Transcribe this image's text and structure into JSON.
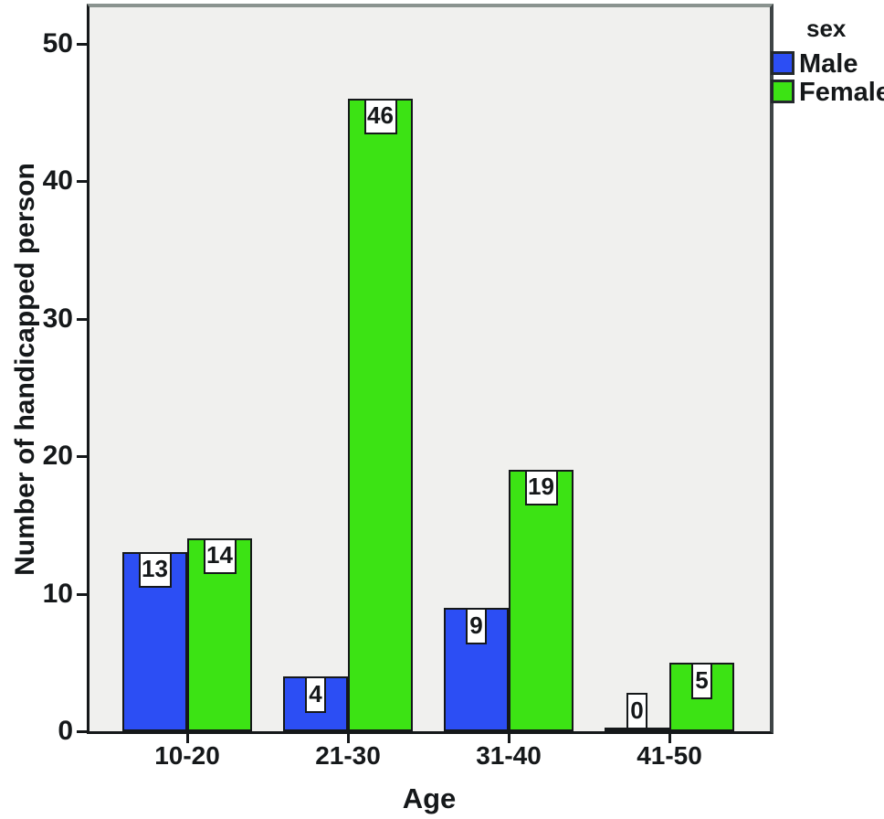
{
  "colors": {
    "male_bar": "#2c4ef4",
    "female_bar": "#3ce314",
    "plot_background": "#f0f0ee",
    "bar_border": "#15181a",
    "value_label_background": "#ffffff",
    "frame_top_gray": "#8a938f",
    "frame_right_gray": "#3f4446",
    "axis_black": "#15181a"
  },
  "chart_data": {
    "type": "bar",
    "title": "",
    "xlabel": "Age",
    "ylabel": "Number of handicapped person",
    "categories": [
      "10-20",
      "21-30",
      "31-40",
      "41-50"
    ],
    "series": [
      {
        "name": "Male",
        "color": "#2c4ef4",
        "values": [
          13,
          4,
          9,
          0
        ]
      },
      {
        "name": "Female",
        "color": "#3ce314",
        "values": [
          14,
          46,
          19,
          5
        ]
      }
    ],
    "yticks": [
      0,
      10,
      20,
      30,
      40,
      50
    ],
    "ylim": [
      0,
      52.6
    ],
    "grid": false,
    "bar_value_labels": [
      13,
      14,
      4,
      46,
      9,
      19,
      0,
      5
    ],
    "legend_title": "sex",
    "legend_position": "top-right"
  }
}
